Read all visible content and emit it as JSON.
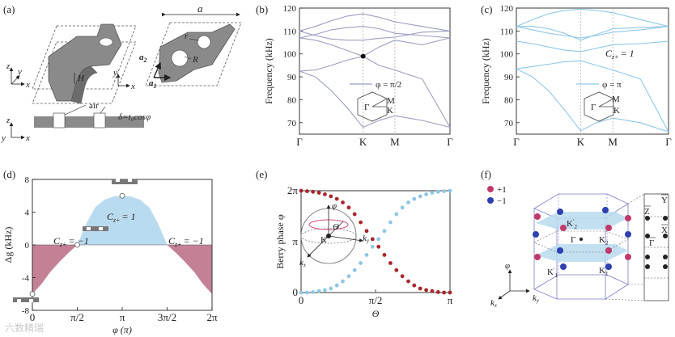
{
  "panels": {
    "a": {
      "label": "(a)",
      "axes": {
        "x": "x",
        "y": "y",
        "z": "z"
      },
      "dims": {
        "a": "a",
        "r": "r",
        "R": "R",
        "H": "H"
      },
      "vectors": {
        "a1": "a",
        "a1_sub": "1",
        "a2": "a",
        "a2_sub": "2"
      },
      "air_label": "air",
      "delta_label": "δ=t₀cosφ"
    },
    "b": {
      "label": "(b)",
      "legend": "φ = π/2",
      "bz": {
        "gamma": "Γ",
        "m": "M",
        "k": "K"
      }
    },
    "c": {
      "label": "(c)",
      "legend": "φ = π",
      "chern": "C",
      "chern_sub": "z+",
      "chern_val": "= 1",
      "bz": {
        "gamma": "Γ",
        "m": "M",
        "k": "K"
      }
    },
    "d": {
      "label": "(d)",
      "region_labels": [
        {
          "main": "C",
          "sub": "z+",
          "val": "= −1"
        },
        {
          "main": "C",
          "sub": "z+",
          "val": "= 1"
        },
        {
          "main": "C",
          "sub": "z+",
          "val": "= −1"
        }
      ]
    },
    "e": {
      "label": "(e)",
      "sphere": {
        "phi": "φ",
        "theta": "Θ",
        "k": "K",
        "kx": "k",
        "kx_sub": "x",
        "ky": "k",
        "ky_sub": "y"
      }
    },
    "f": {
      "label": "(f)",
      "legend": [
        {
          "label": "+1",
          "color": "#c0396b"
        },
        {
          "label": "−1",
          "color": "#2e3fb0"
        }
      ],
      "points": {
        "k1": "K",
        "k1_sub": "1",
        "k1p": "K",
        "k1p_sub": "1",
        "k1p_prime": "′",
        "k2": "K",
        "k2_sub": "2",
        "k2p": "K",
        "k2p_sub": "2",
        "k2p_prime": "′",
        "gamma": "Γ"
      },
      "surface": {
        "y": "Y",
        "z": "Z",
        "x": "X",
        "gamma": "Γ"
      },
      "axes": {
        "phi": "φ",
        "kx": "k",
        "kx_sub": "x",
        "ky": "k",
        "ky_sub": "y"
      }
    }
  },
  "chart_data": [
    {
      "panel": "b",
      "type": "line",
      "xlabel": "",
      "ylabel": "Frequency (kHz)",
      "x_ticks": [
        "Γ",
        "K",
        "M",
        "Γ"
      ],
      "x_positions": [
        0,
        1,
        1.5,
        2.366
      ],
      "yticks": [
        70,
        80,
        90,
        100,
        110,
        120
      ],
      "ylim": [
        65,
        120
      ],
      "color": "#9b9fbf",
      "series": [
        {
          "name": "band1",
          "x": [
            0,
            0.25,
            0.5,
            0.75,
            1,
            1.25,
            1.5,
            1.93,
            2.366
          ],
          "values": [
            92.5,
            90,
            84,
            76.5,
            68,
            71,
            73,
            71,
            68
          ]
        },
        {
          "name": "band2",
          "x": [
            0,
            0.25,
            0.5,
            0.75,
            1,
            1.25,
            1.5,
            1.93,
            2.366
          ],
          "values": [
            92.5,
            93,
            95,
            97.3,
            99,
            95,
            93,
            89,
            68
          ]
        },
        {
          "name": "band3",
          "x": [
            0,
            0.25,
            0.5,
            0.75,
            1,
            1.25,
            1.5,
            1.93,
            2.366
          ],
          "values": [
            107,
            106,
            104,
            101.5,
            99,
            103,
            106,
            104,
            107
          ]
        },
        {
          "name": "band4",
          "x": [
            0,
            0.25,
            0.5,
            0.75,
            1,
            1.25,
            1.5,
            1.93,
            2.366
          ],
          "values": [
            107,
            108.5,
            110.5,
            111.5,
            112,
            111,
            109,
            108,
            107
          ]
        },
        {
          "name": "band5",
          "x": [
            0,
            0.25,
            0.5,
            0.75,
            1,
            1.25,
            1.5,
            1.93,
            2.366
          ],
          "values": [
            110,
            108,
            106.5,
            106,
            106,
            106.8,
            107.3,
            109.5,
            110
          ]
        },
        {
          "name": "band6",
          "x": [
            0,
            0.25,
            0.5,
            0.75,
            1,
            1.25,
            1.5,
            1.93,
            2.366
          ],
          "values": [
            110,
            112,
            114.5,
            116.5,
            117.5,
            116,
            114,
            112,
            110
          ]
        }
      ],
      "annotations": [
        {
          "x": 1,
          "y": 99,
          "marker": "dirac-point"
        }
      ]
    },
    {
      "panel": "c",
      "type": "line",
      "xlabel": "",
      "ylabel": "Frequency (kHz)",
      "x_ticks": [
        "Γ",
        "K",
        "M",
        "Γ"
      ],
      "x_positions": [
        0,
        1,
        1.5,
        2.366
      ],
      "yticks": [
        70,
        80,
        90,
        100,
        110,
        120
      ],
      "ylim": [
        65,
        120
      ],
      "color": "#8fc7e6",
      "series": [
        {
          "name": "band1",
          "x": [
            0,
            0.25,
            0.5,
            0.75,
            1,
            1.25,
            1.5,
            1.93,
            2.366
          ],
          "values": [
            93.5,
            90,
            84,
            75.5,
            66.5,
            70,
            72,
            70,
            66
          ]
        },
        {
          "name": "band2",
          "x": [
            0,
            0.25,
            0.5,
            0.75,
            1,
            1.25,
            1.5,
            1.93,
            2.366
          ],
          "values": [
            93.5,
            94.5,
            95.5,
            96.6,
            97,
            95,
            93,
            89,
            66
          ]
        },
        {
          "name": "band3",
          "x": [
            0,
            0.25,
            0.5,
            0.75,
            1,
            1.25,
            1.5,
            1.93,
            2.366
          ],
          "values": [
            105.5,
            104.5,
            103,
            101.7,
            101,
            102.5,
            104,
            104.5,
            105.5
          ]
        },
        {
          "name": "band4",
          "x": [
            0,
            0.25,
            0.5,
            0.75,
            1,
            1.25,
            1.5,
            1.93,
            2.366
          ],
          "values": [
            112,
            110.5,
            109,
            108,
            107,
            108,
            109.5,
            110.5,
            112
          ]
        },
        {
          "name": "band5",
          "x": [
            0,
            0.25,
            0.5,
            0.75,
            1,
            1.25,
            1.5,
            1.93,
            2.366
          ],
          "values": [
            112,
            112,
            111,
            109,
            106,
            108.5,
            111,
            111.5,
            112
          ]
        },
        {
          "name": "band6",
          "x": [
            0,
            0.25,
            0.5,
            0.75,
            1,
            1.25,
            1.5,
            1.93,
            2.366
          ],
          "values": [
            112,
            115,
            117.5,
            119,
            119.5,
            119,
            118,
            115,
            112
          ]
        }
      ]
    },
    {
      "panel": "d",
      "type": "area",
      "xlabel": "φ (π)",
      "ylabel": "Δg (kHz)",
      "x_ticks": [
        "0",
        "π/2",
        "π",
        "3π/2",
        "2π"
      ],
      "x_tick_values": [
        0,
        0.5,
        1,
        1.5,
        2
      ],
      "yticks": [
        -8,
        -4,
        0,
        4,
        8
      ],
      "ylim": [
        -8,
        8
      ],
      "xlim": [
        0,
        2
      ],
      "x": [
        0,
        0.1,
        0.2,
        0.3,
        0.4,
        0.5,
        0.6,
        0.7,
        0.8,
        0.9,
        1.0,
        1.1,
        1.2,
        1.3,
        1.4,
        1.5,
        1.6,
        1.7,
        1.8,
        1.9,
        2.0
      ],
      "values": [
        -6,
        -4.8,
        -3.3,
        -2.1,
        -1.0,
        0,
        2.6,
        4.6,
        5.5,
        5.9,
        6.0,
        5.9,
        5.5,
        4.6,
        2.6,
        0,
        -1.0,
        -2.1,
        -3.3,
        -4.8,
        -6
      ],
      "colors": {
        "negative": "#c48196",
        "positive": "#b9dbef"
      },
      "highlight_points": [
        {
          "x": 0,
          "y": -6
        },
        {
          "x": 0.5,
          "y": 0
        },
        {
          "x": 1,
          "y": 6
        }
      ]
    },
    {
      "panel": "e",
      "type": "scatter",
      "xlabel": "Θ",
      "ylabel": "Berry phase φ",
      "x_ticks": [
        "0",
        "π/2",
        "π"
      ],
      "x_tick_values": [
        0,
        0.5,
        1
      ],
      "y_ticks": [
        "0",
        "π",
        "2π"
      ],
      "y_tick_values": [
        0,
        1,
        2
      ],
      "xlim": [
        0,
        1
      ],
      "ylim": [
        0,
        2
      ],
      "series": [
        {
          "name": "red",
          "color": "#a8262c",
          "x": [
            0,
            0.04,
            0.08,
            0.12,
            0.16,
            0.2,
            0.24,
            0.28,
            0.32,
            0.36,
            0.4,
            0.44,
            0.48,
            0.52,
            0.56,
            0.6,
            0.64,
            0.68,
            0.72,
            0.76,
            0.8,
            0.84,
            0.88,
            0.92,
            0.96,
            1.0
          ],
          "values": [
            2.0,
            1.99,
            1.98,
            1.96,
            1.93,
            1.89,
            1.84,
            1.77,
            1.67,
            1.54,
            1.38,
            1.21,
            1.05,
            0.9,
            0.74,
            0.58,
            0.44,
            0.32,
            0.22,
            0.14,
            0.08,
            0.05,
            0.03,
            0.01,
            0.0,
            0.0
          ]
        },
        {
          "name": "blue",
          "color": "#8fc7e6",
          "x": [
            0,
            0.04,
            0.08,
            0.12,
            0.16,
            0.2,
            0.24,
            0.28,
            0.32,
            0.36,
            0.4,
            0.44,
            0.48,
            0.52,
            0.56,
            0.6,
            0.64,
            0.68,
            0.72,
            0.76,
            0.8,
            0.84,
            0.88,
            0.92,
            0.96,
            1.0
          ],
          "values": [
            0.0,
            0.0,
            0.01,
            0.03,
            0.05,
            0.08,
            0.14,
            0.22,
            0.32,
            0.44,
            0.58,
            0.74,
            0.9,
            1.05,
            1.21,
            1.38,
            1.54,
            1.67,
            1.77,
            1.84,
            1.89,
            1.93,
            1.96,
            1.98,
            1.99,
            2.0
          ]
        }
      ]
    }
  ],
  "watermark": "六数精瑞"
}
